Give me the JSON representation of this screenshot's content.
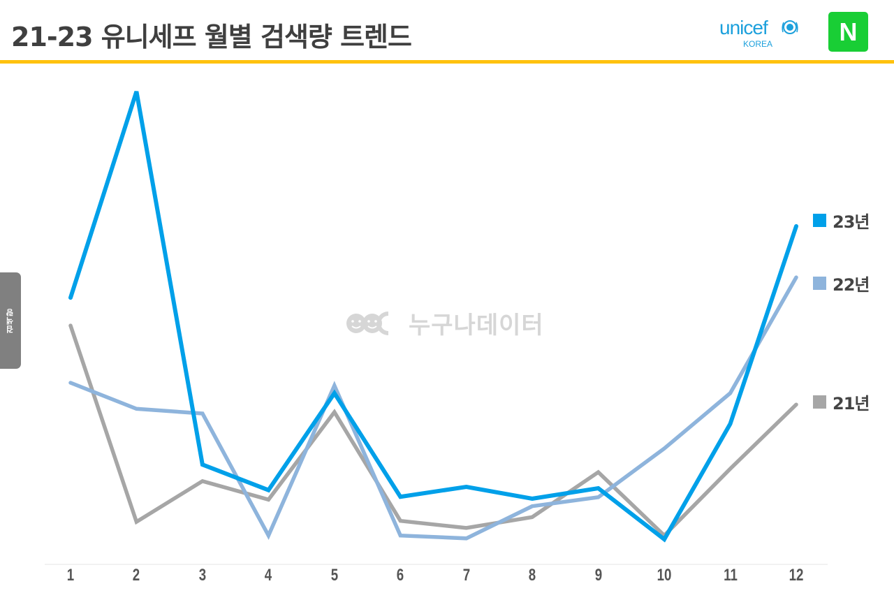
{
  "header": {
    "title": "21-23 유니세프 월별 검색량 트렌드",
    "rule_color": "#FFC20E",
    "logos": {
      "unicef": {
        "word": "unicef",
        "sub": "KOREA",
        "color": "#1CA0DC"
      },
      "naver": {
        "letter": "N",
        "color": "#19CE35"
      }
    }
  },
  "watermark": {
    "text": "누구나데이터",
    "color": "#D6D6D6"
  },
  "y_axis_tab": {
    "label": "검색량"
  },
  "chart_data": {
    "type": "line",
    "title": "21-23 유니세프 월별 검색량 트렌드",
    "xlabel": "",
    "ylabel": "검색량",
    "categories": [
      "1",
      "2",
      "3",
      "4",
      "5",
      "6",
      "7",
      "8",
      "9",
      "10",
      "11",
      "12"
    ],
    "ylim": [
      0,
      100
    ],
    "y_scale_note": "relative search volume, peak (23년 Feb) = 100",
    "grid": false,
    "legend_position": "right",
    "series": [
      {
        "name": "23년",
        "color": "#00A0E9",
        "values": [
          56.4,
          100,
          21.1,
          15.7,
          36.2,
          14.3,
          16.4,
          13.9,
          16.1,
          5.3,
          29.7,
          71.5
        ]
      },
      {
        "name": "22년",
        "color": "#8EB4DC",
        "values": [
          38.4,
          32.9,
          31.9,
          6.1,
          37.8,
          6.1,
          5.5,
          12.3,
          14.2,
          24.5,
          36.2,
          60.7
        ]
      },
      {
        "name": "21년",
        "color": "#A6A6A6",
        "values": [
          50.5,
          9.0,
          17.6,
          13.7,
          32.2,
          9.2,
          7.7,
          10.0,
          19.5,
          6.1,
          20.2,
          33.8
        ]
      }
    ]
  },
  "legend": [
    {
      "label": "23년",
      "color": "#00A0E9"
    },
    {
      "label": "22년",
      "color": "#8EB4DC"
    },
    {
      "label": "21년",
      "color": "#A6A6A6"
    }
  ]
}
